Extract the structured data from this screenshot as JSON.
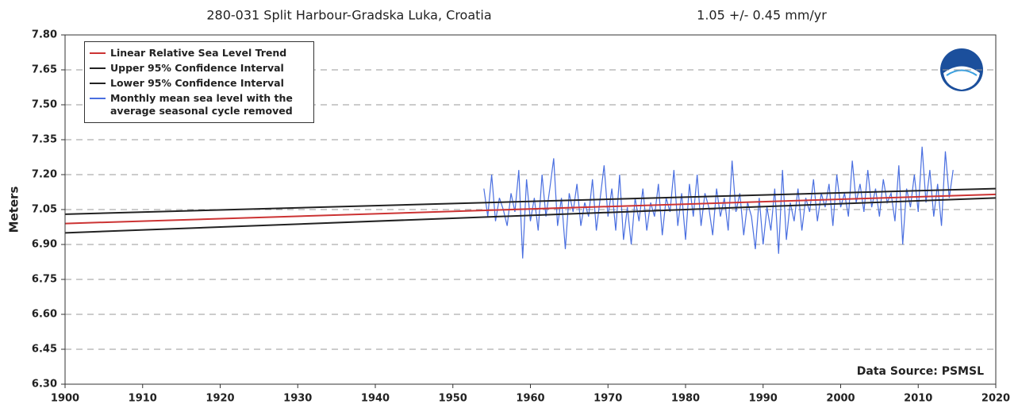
{
  "chart_data": {
    "type": "line",
    "title": "280-031 Split Harbour-Gradska Luka, Croatia",
    "subtitle": "1.05 +/-  0.45 mm/yr",
    "y_label": "Meters",
    "annotation": "Data Source: PSMSL",
    "xlim": [
      1900,
      2020
    ],
    "xticks": [
      1900,
      1910,
      1920,
      1930,
      1940,
      1950,
      1960,
      1970,
      1980,
      1990,
      2000,
      2010,
      2020
    ],
    "ylim": [
      6.3,
      7.8
    ],
    "yticks": [
      {
        "value": 6.3,
        "label": "6.30"
      },
      6.45,
      {
        "value": 6.6,
        "label": "6.60"
      },
      6.75,
      {
        "value": 6.9,
        "label": "6.90"
      },
      7.05,
      {
        "value": 7.2,
        "label": "7.20"
      },
      7.35,
      {
        "value": 7.5,
        "label": "7.50"
      },
      7.65,
      {
        "value": 7.8,
        "label": "7.80"
      }
    ],
    "grid": true,
    "legend": "upper left",
    "series": [
      {
        "name": "Linear Relative Sea Level Trend",
        "color": "#cc3333",
        "x": [
          1900,
          2020
        ],
        "values": [
          6.99,
          7.115
        ]
      },
      {
        "name": "Upper 95% Confidence Interval",
        "color": "#222222",
        "x": [
          1900,
          2020
        ],
        "values": [
          7.03,
          7.14
        ]
      },
      {
        "name": "Lower 95% Confidence Interval",
        "color": "#222222",
        "x": [
          1900,
          2020
        ],
        "values": [
          6.95,
          7.1
        ]
      },
      {
        "name": "Monthly mean sea level with the average seasonal cycle removed",
        "color": "#4a6fe0",
        "x": [
          1954,
          1954.5,
          1955,
          1955.5,
          1956,
          1956.5,
          1957,
          1957.5,
          1958,
          1958.5,
          1959,
          1959.5,
          1960,
          1960.5,
          1961,
          1961.5,
          1962,
          1962.5,
          1963,
          1963.5,
          1964,
          1964.5,
          1965,
          1965.5,
          1966,
          1966.5,
          1967,
          1967.5,
          1968,
          1968.5,
          1969,
          1969.5,
          1970,
          1970.5,
          1971,
          1971.5,
          1972,
          1972.5,
          1973,
          1973.5,
          1974,
          1974.5,
          1975,
          1975.5,
          1976,
          1976.5,
          1977,
          1977.5,
          1978,
          1978.5,
          1979,
          1979.5,
          1980,
          1980.5,
          1981,
          1981.5,
          1982,
          1982.5,
          1983,
          1983.5,
          1984,
          1984.5,
          1985,
          1985.5,
          1986,
          1986.5,
          1987,
          1987.5,
          1988,
          1988.5,
          1989,
          1989.5,
          1990,
          1990.5,
          1991,
          1991.5,
          1992,
          1992.5,
          1993,
          1993.5,
          1994,
          1994.5,
          1995,
          1995.5,
          1996,
          1996.5,
          1997,
          1997.5,
          1998,
          1998.5,
          1999,
          1999.5,
          2000,
          2000.5,
          2001,
          2001.5,
          2002,
          2002.5,
          2003,
          2003.5,
          2004,
          2004.5,
          2005,
          2005.5,
          2006,
          2006.5,
          2007,
          2007.5,
          2008,
          2008.5,
          2009,
          2009.5,
          2010,
          2010.5,
          2011,
          2011.5,
          2012,
          2012.5,
          2013,
          2013.5,
          2014,
          2014.5
        ],
        "values": [
          7.14,
          7.02,
          7.2,
          7.0,
          7.1,
          7.05,
          6.98,
          7.12,
          7.04,
          7.22,
          6.84,
          7.18,
          7.0,
          7.1,
          6.96,
          7.2,
          7.02,
          7.14,
          7.27,
          6.98,
          7.1,
          6.88,
          7.12,
          7.04,
          7.16,
          6.98,
          7.08,
          7.02,
          7.18,
          6.96,
          7.1,
          7.24,
          7.02,
          7.14,
          6.96,
          7.2,
          6.92,
          7.06,
          6.9,
          7.1,
          7.0,
          7.14,
          6.96,
          7.08,
          7.02,
          7.16,
          6.94,
          7.1,
          7.04,
          7.22,
          6.98,
          7.12,
          6.92,
          7.16,
          7.02,
          7.2,
          6.98,
          7.12,
          7.06,
          6.94,
          7.14,
          7.02,
          7.1,
          6.96,
          7.26,
          7.04,
          7.12,
          6.94,
          7.08,
          7.02,
          6.88,
          7.1,
          6.9,
          7.06,
          6.96,
          7.14,
          6.86,
          7.22,
          6.92,
          7.08,
          7.0,
          7.14,
          6.96,
          7.1,
          7.04,
          7.18,
          7.0,
          7.12,
          7.06,
          7.16,
          6.98,
          7.2,
          7.06,
          7.12,
          7.02,
          7.26,
          7.08,
          7.16,
          7.04,
          7.22,
          7.06,
          7.14,
          7.02,
          7.18,
          7.08,
          7.12,
          7.0,
          7.24,
          6.9,
          7.14,
          7.06,
          7.2,
          7.04,
          7.32,
          7.08,
          7.22,
          7.02,
          7.16,
          6.98,
          7.3,
          7.1,
          7.22
        ]
      }
    ]
  }
}
